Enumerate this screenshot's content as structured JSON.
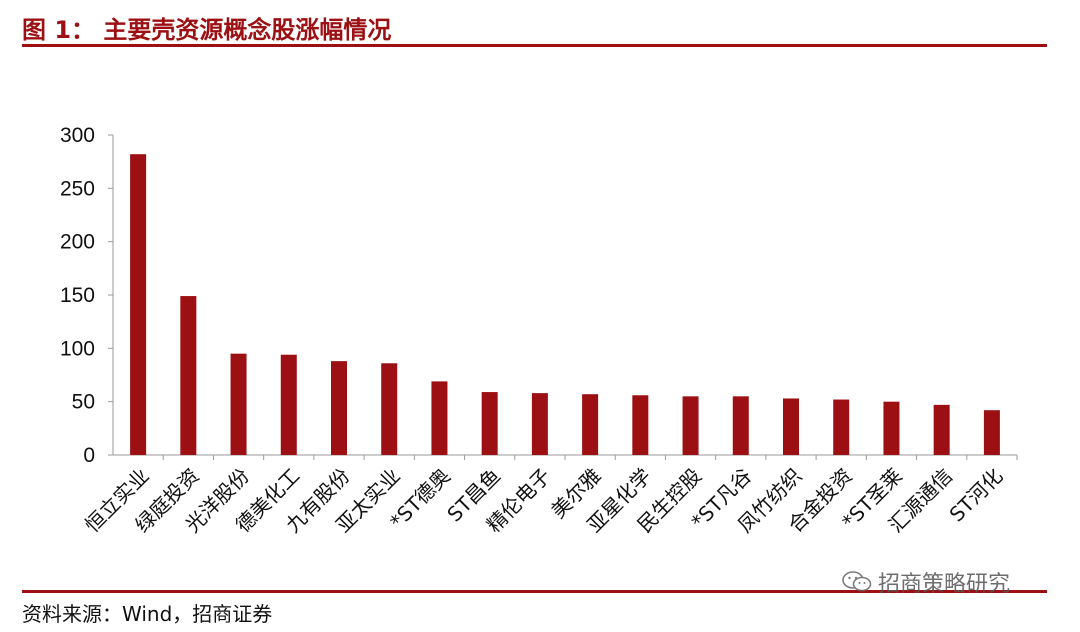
{
  "header": {
    "title": "图 1： 主要壳资源概念股涨幅情况"
  },
  "footer": {
    "source": "资料来源：Wind，招商证券"
  },
  "watermark": {
    "text": "招商策略研究",
    "icon": "wechat-icon"
  },
  "colors": {
    "accent": "#9c0f12",
    "bar": "#9c0f12"
  },
  "chart_data": {
    "type": "bar",
    "title": "",
    "xlabel": "",
    "ylabel": "",
    "ylim": [
      0,
      300
    ],
    "yticks": [
      0,
      50,
      100,
      150,
      200,
      250,
      300
    ],
    "grid": false,
    "legend": "none",
    "categories": [
      "恒立实业",
      "绿庭投资",
      "光洋股份",
      "德美化工",
      "九有股份",
      "亚太实业",
      "*ST德奥",
      "ST昌鱼",
      "精伦电子",
      "美尔雅",
      "亚星化学",
      "民生控股",
      "*ST凡谷",
      "凤竹纺织",
      "合金投资",
      "*ST圣莱",
      "汇源通信",
      "ST河化"
    ],
    "values": [
      282,
      149,
      95,
      94,
      88,
      86,
      69,
      59,
      58,
      57,
      56,
      55,
      55,
      53,
      52,
      50,
      47,
      42
    ]
  }
}
